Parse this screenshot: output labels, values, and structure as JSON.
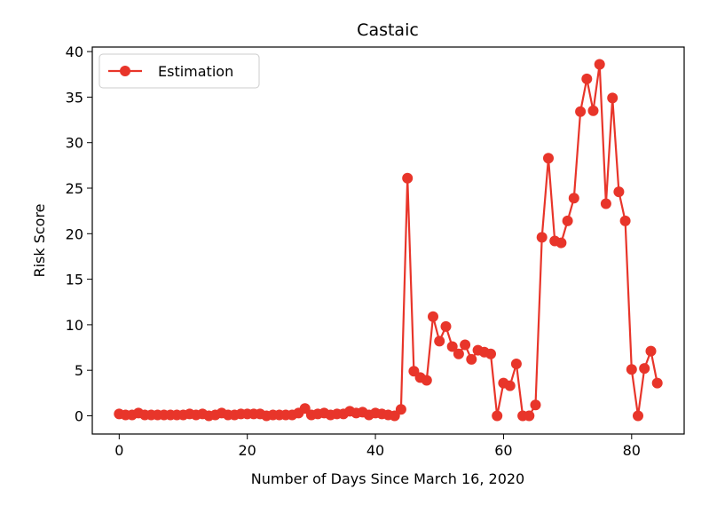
{
  "chart_data": {
    "type": "line",
    "title": "Castaic",
    "xlabel": "Number of Days Since March 16, 2020",
    "ylabel": "Risk Score",
    "xlim": [
      -4.2,
      88.2
    ],
    "ylim": [
      -2.0,
      40.5
    ],
    "x_ticks": [
      0,
      20,
      40,
      60,
      80
    ],
    "y_ticks": [
      0,
      5,
      10,
      15,
      20,
      25,
      30,
      35,
      40
    ],
    "grid": false,
    "legend_position": "top-left",
    "series": [
      {
        "name": "Estimation",
        "color": "#e8352a",
        "marker": "circle",
        "x": [
          0,
          1,
          2,
          3,
          4,
          5,
          6,
          7,
          8,
          9,
          10,
          11,
          12,
          13,
          14,
          15,
          16,
          17,
          18,
          19,
          20,
          21,
          22,
          23,
          24,
          25,
          26,
          27,
          28,
          29,
          30,
          31,
          32,
          33,
          34,
          35,
          36,
          37,
          38,
          39,
          40,
          41,
          42,
          43,
          44,
          45,
          46,
          47,
          48,
          49,
          50,
          51,
          52,
          53,
          54,
          55,
          56,
          57,
          58,
          59,
          60,
          61,
          62,
          63,
          64,
          65,
          66,
          67,
          68,
          69,
          70,
          71,
          72,
          73,
          74,
          75,
          76,
          77,
          78,
          79,
          80,
          81,
          82,
          83,
          84
        ],
        "values": [
          0.2,
          0.1,
          0.1,
          0.3,
          0.1,
          0.1,
          0.1,
          0.1,
          0.1,
          0.1,
          0.1,
          0.2,
          0.1,
          0.2,
          0.0,
          0.1,
          0.3,
          0.1,
          0.1,
          0.2,
          0.2,
          0.2,
          0.2,
          0.0,
          0.1,
          0.1,
          0.1,
          0.1,
          0.3,
          0.8,
          0.1,
          0.2,
          0.3,
          0.1,
          0.2,
          0.2,
          0.5,
          0.3,
          0.4,
          0.1,
          0.3,
          0.2,
          0.1,
          0.0,
          0.7,
          26.1,
          4.9,
          4.2,
          3.9,
          10.9,
          8.2,
          9.8,
          7.6,
          6.8,
          7.8,
          6.2,
          7.2,
          7.0,
          6.8,
          0.0,
          3.6,
          3.3,
          5.7,
          0.0,
          0.0,
          1.2,
          19.6,
          28.3,
          19.2,
          19.0,
          21.4,
          23.9,
          33.4,
          37.0,
          33.5,
          38.6,
          23.3,
          34.9,
          24.6,
          21.4,
          5.1,
          0.0,
          5.2,
          7.1,
          3.6
        ]
      }
    ]
  }
}
